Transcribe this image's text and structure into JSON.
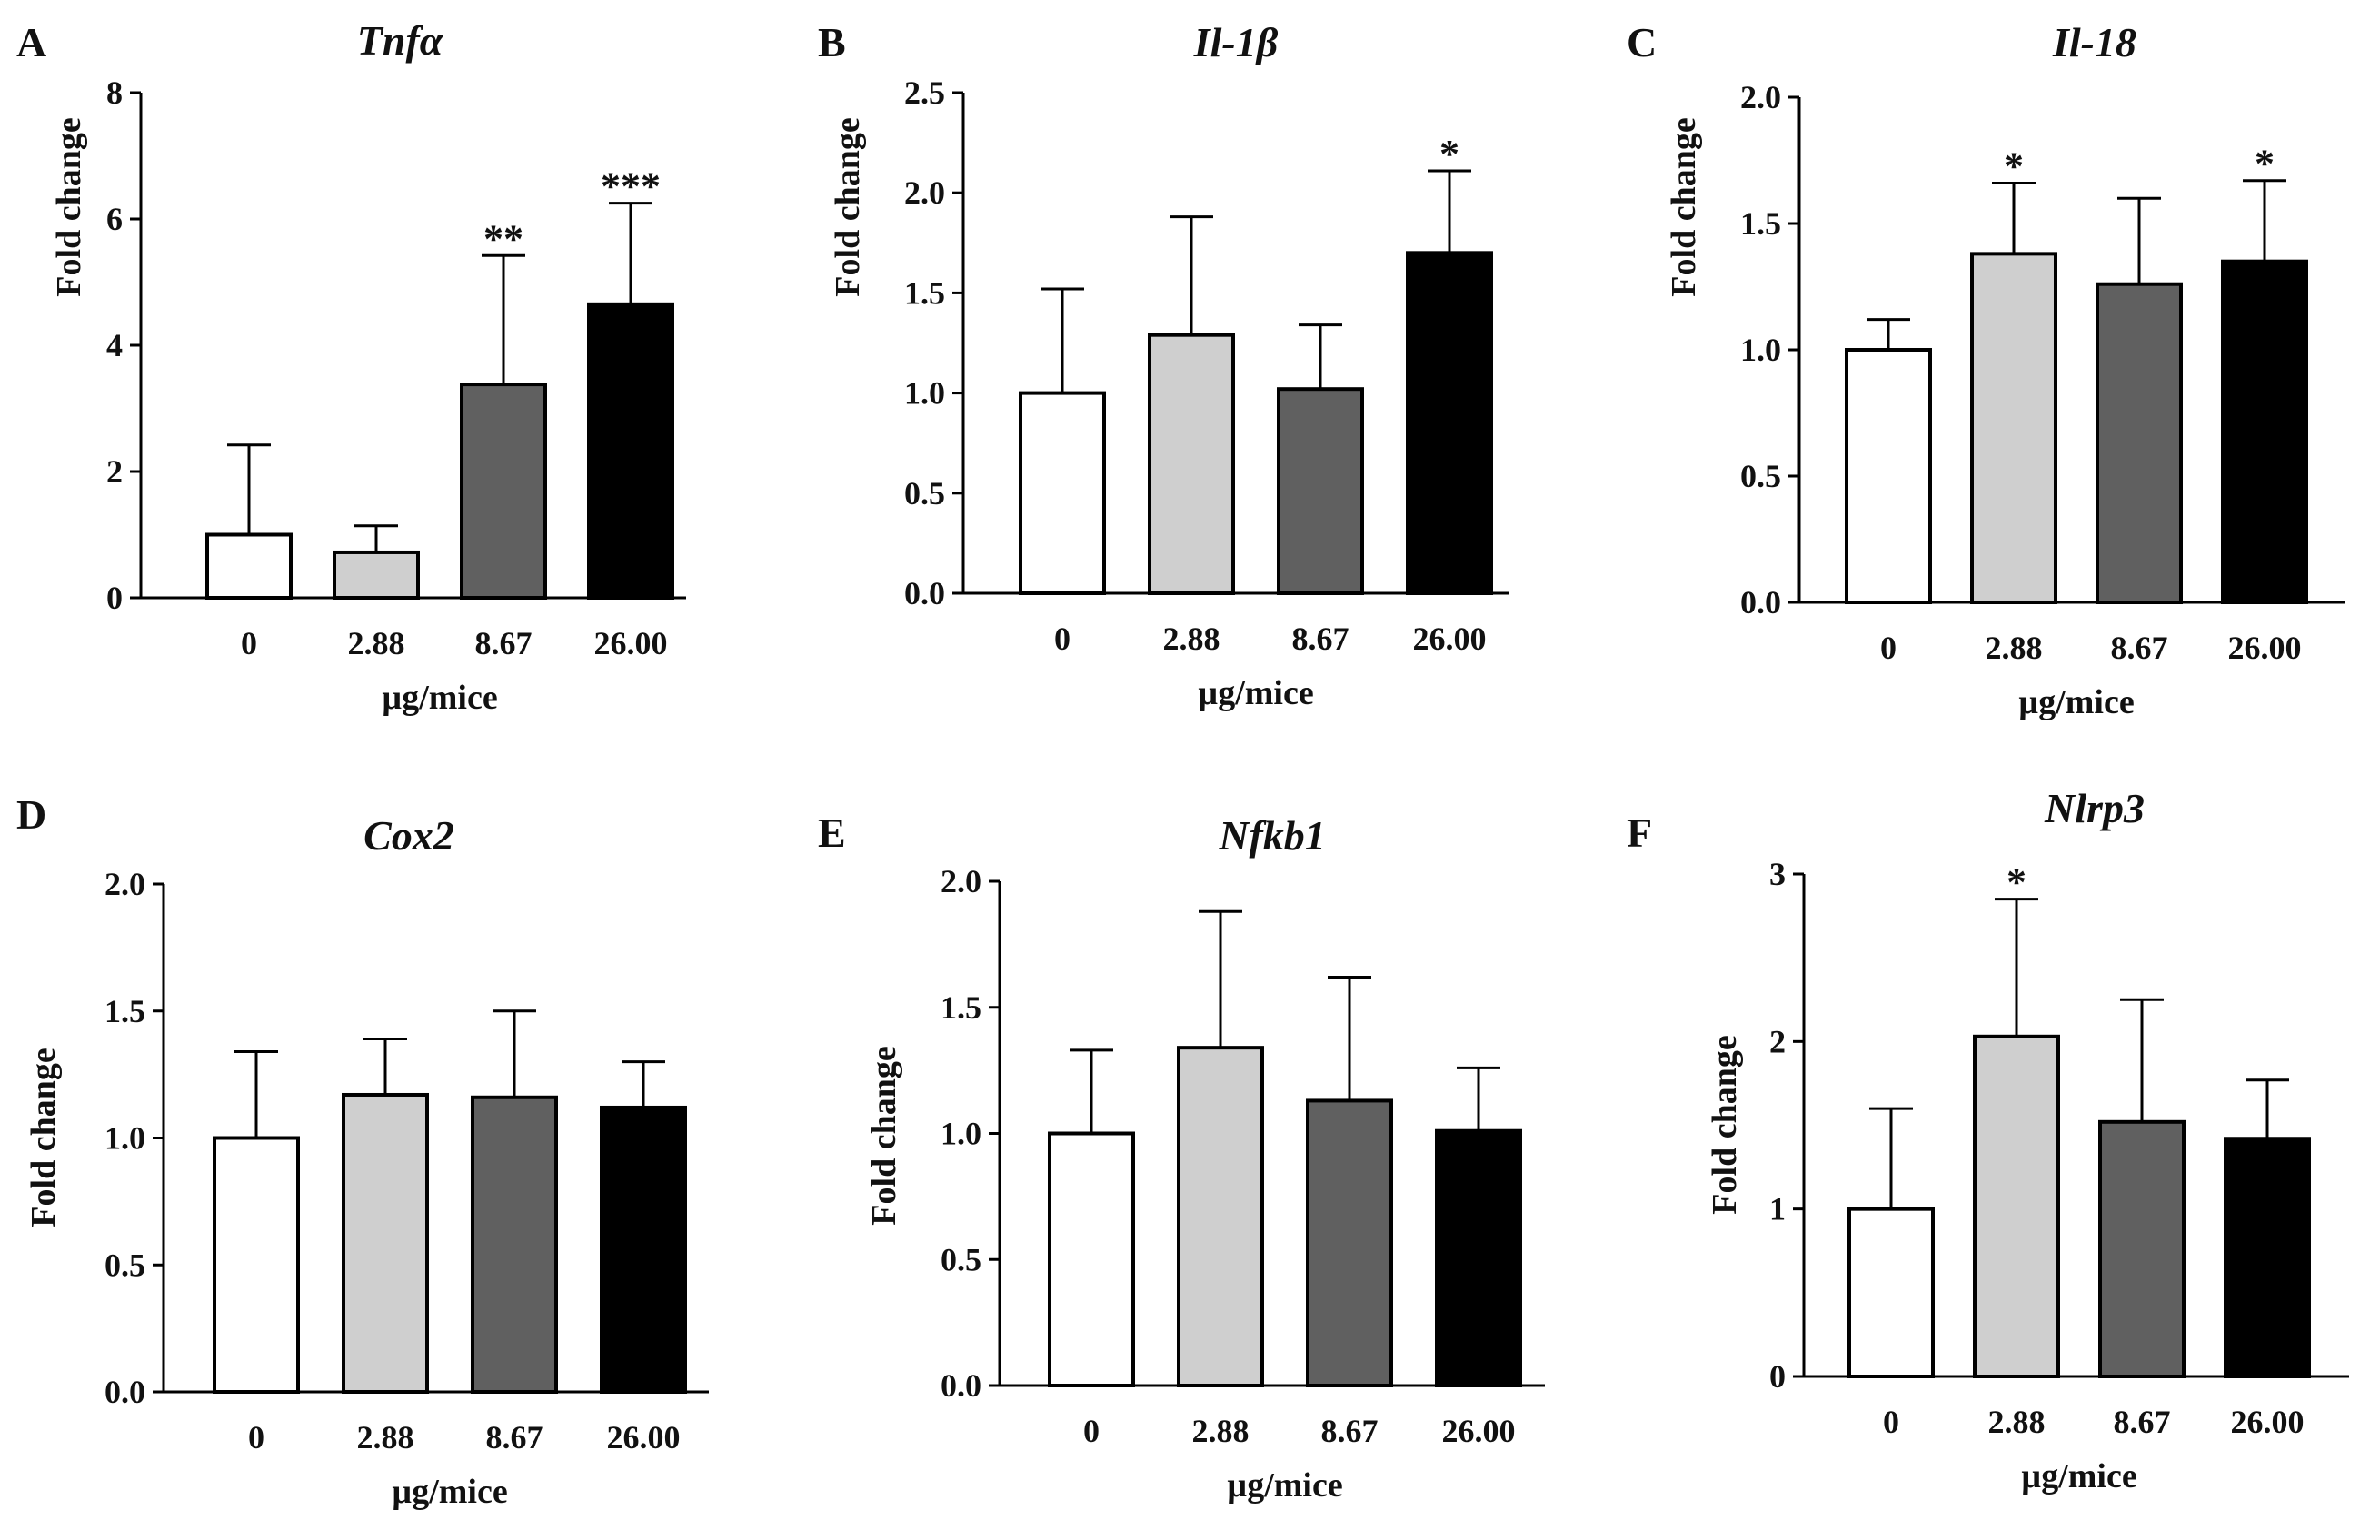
{
  "figure": {
    "bar_colors": [
      "#ffffff",
      "#cfcfcf",
      "#606060",
      "#000000"
    ],
    "stroke_color": "#000000"
  },
  "chart_data": [
    {
      "type": "bar",
      "panel": "A",
      "title": "Tnfα",
      "categories": [
        "0",
        "2.88",
        "8.67",
        "26.00"
      ],
      "values": [
        1.0,
        0.72,
        3.38,
        4.65
      ],
      "errors": [
        1.42,
        0.42,
        2.04,
        1.6
      ],
      "significance": [
        "",
        "",
        "**",
        "***"
      ],
      "xlabel": "µg/mice",
      "ylabel": "Fold change",
      "ylim": [
        0,
        8
      ],
      "yticks": [
        0,
        2,
        4,
        6,
        8
      ],
      "ytick_labels": [
        "0",
        "2",
        "4",
        "6",
        "8"
      ]
    },
    {
      "type": "bar",
      "panel": "B",
      "title": "Il-1β",
      "categories": [
        "0",
        "2.88",
        "8.67",
        "26.00"
      ],
      "values": [
        1.0,
        1.29,
        1.02,
        1.7
      ],
      "errors": [
        0.52,
        0.59,
        0.32,
        0.41
      ],
      "significance": [
        "",
        "",
        "",
        "*"
      ],
      "xlabel": "µg/mice",
      "ylabel": "Fold change",
      "ylim": [
        0,
        2.5
      ],
      "yticks": [
        0,
        0.5,
        1,
        1.5,
        2,
        2.5
      ],
      "ytick_labels": [
        "0.0",
        "0.5",
        "1.0",
        "1.5",
        "2.0",
        "2.5"
      ]
    },
    {
      "type": "bar",
      "panel": "C",
      "title": "Il-18",
      "categories": [
        "0",
        "2.88",
        "8.67",
        "26.00"
      ],
      "values": [
        1.0,
        1.38,
        1.26,
        1.35
      ],
      "errors": [
        0.12,
        0.28,
        0.34,
        0.32
      ],
      "significance": [
        "",
        "*",
        "",
        "*"
      ],
      "xlabel": "µg/mice",
      "ylabel": "Fold change",
      "ylim": [
        0,
        2
      ],
      "yticks": [
        0,
        0.5,
        1,
        1.5,
        2
      ],
      "ytick_labels": [
        "0.0",
        "0.5",
        "1.0",
        "1.5",
        "2.0"
      ]
    },
    {
      "type": "bar",
      "panel": "D",
      "title": "Cox2",
      "categories": [
        "0",
        "2.88",
        "8.67",
        "26.00"
      ],
      "values": [
        1.0,
        1.17,
        1.16,
        1.12
      ],
      "errors": [
        0.34,
        0.22,
        0.34,
        0.18
      ],
      "significance": [
        "",
        "",
        "",
        ""
      ],
      "xlabel": "µg/mice",
      "ylabel": "Fold change",
      "ylim": [
        0,
        2
      ],
      "yticks": [
        0,
        0.5,
        1,
        1.5,
        2
      ],
      "ytick_labels": [
        "0.0",
        "0.5",
        "1.0",
        "1.5",
        "2.0"
      ]
    },
    {
      "type": "bar",
      "panel": "E",
      "title": "Nfkb1",
      "categories": [
        "0",
        "2.88",
        "8.67",
        "26.00"
      ],
      "values": [
        1.0,
        1.34,
        1.13,
        1.01
      ],
      "errors": [
        0.33,
        0.54,
        0.49,
        0.25
      ],
      "significance": [
        "",
        "",
        "",
        ""
      ],
      "xlabel": "µg/mice",
      "ylabel": "Fold change",
      "ylim": [
        0,
        2
      ],
      "yticks": [
        0,
        0.5,
        1,
        1.5,
        2
      ],
      "ytick_labels": [
        "0.0",
        "0.5",
        "1.0",
        "1.5",
        "2.0"
      ]
    },
    {
      "type": "bar",
      "panel": "F",
      "title": "Nlrp3",
      "categories": [
        "0",
        "2.88",
        "8.67",
        "26.00"
      ],
      "values": [
        1.0,
        2.03,
        1.52,
        1.42
      ],
      "errors": [
        0.6,
        0.82,
        0.73,
        0.35
      ],
      "significance": [
        "",
        "*",
        "",
        ""
      ],
      "xlabel": "µg/mice",
      "ylabel": "Fold change",
      "ylim": [
        0,
        3
      ],
      "yticks": [
        0,
        1,
        2,
        3
      ],
      "ytick_labels": [
        "0",
        "1",
        "2",
        "3"
      ]
    }
  ]
}
